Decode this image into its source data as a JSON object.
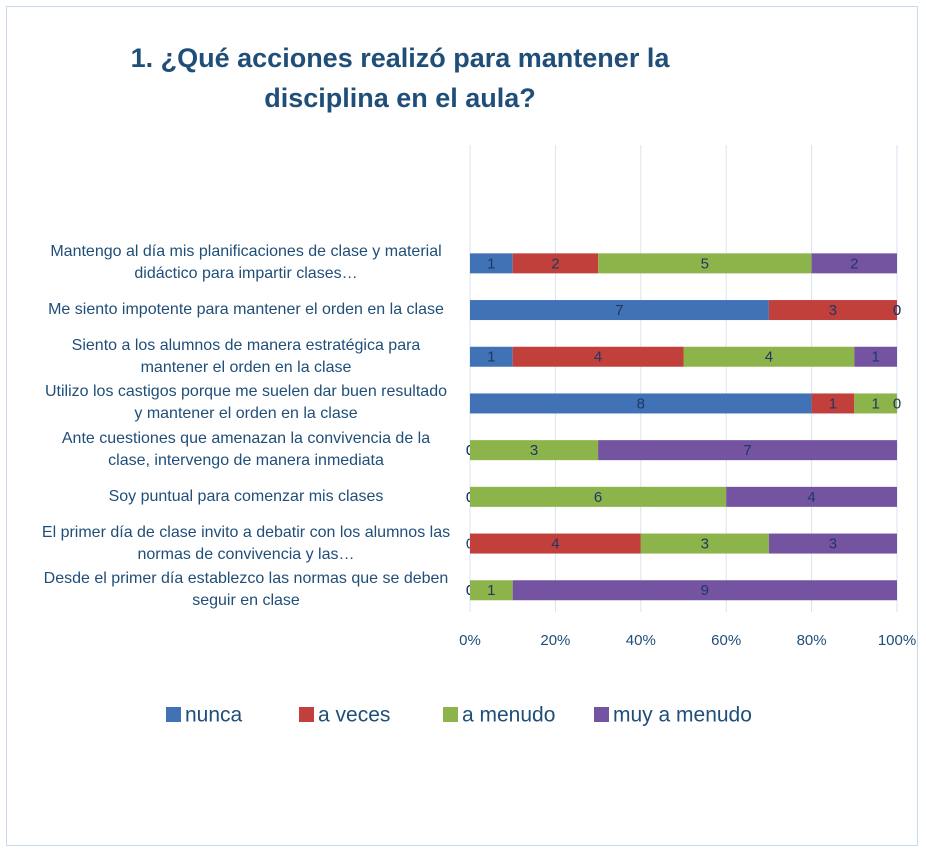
{
  "chart_data": {
    "type": "bar",
    "orientation": "horizontal",
    "stacked_percent": true,
    "title": "1. ¿Qué acciones realizó para mantener  la disciplina en el aula?",
    "categories": [
      "Mantengo al día mis planificaciones de clase y material didáctico para impartir clases…",
      "Me siento impotente para mantener el orden en la clase",
      "Siento a los alumnos de manera estratégica para mantener el orden en la clase",
      "Utilizo los castigos porque me suelen dar buen resultado y mantener el orden en la clase",
      "Ante cuestiones que amenazan la convivencia de la clase, intervengo de manera inmediata",
      "Soy puntual para comenzar mis clases",
      "El primer día de clase invito a debatir con los alumnos las normas de convivencia y las…",
      "Desde el primer día establezco las normas que se deben seguir en clase"
    ],
    "series": [
      {
        "name": "nunca",
        "color": "#4172b5",
        "values": [
          1,
          7,
          1,
          8,
          0,
          0,
          0,
          0
        ]
      },
      {
        "name": "a veces",
        "color": "#c1403b",
        "values": [
          2,
          3,
          4,
          1,
          0,
          0,
          4,
          0
        ]
      },
      {
        "name": "a menudo",
        "color": "#8db34b",
        "values": [
          5,
          0,
          4,
          1,
          3,
          6,
          3,
          1
        ]
      },
      {
        "name": "muy a menudo",
        "color": "#7453a1",
        "values": [
          2,
          0,
          1,
          0,
          7,
          4,
          3,
          9
        ]
      }
    ],
    "xlim": [
      0,
      100
    ],
    "xticks": [
      {
        "value": 0,
        "label": "0%"
      },
      {
        "value": 20,
        "label": "20%"
      },
      {
        "value": 40,
        "label": "40%"
      },
      {
        "value": 60,
        "label": "60%"
      },
      {
        "value": 80,
        "label": "80%"
      },
      {
        "value": 100,
        "label": "100%"
      }
    ],
    "grid": true,
    "legend": "bottom"
  }
}
